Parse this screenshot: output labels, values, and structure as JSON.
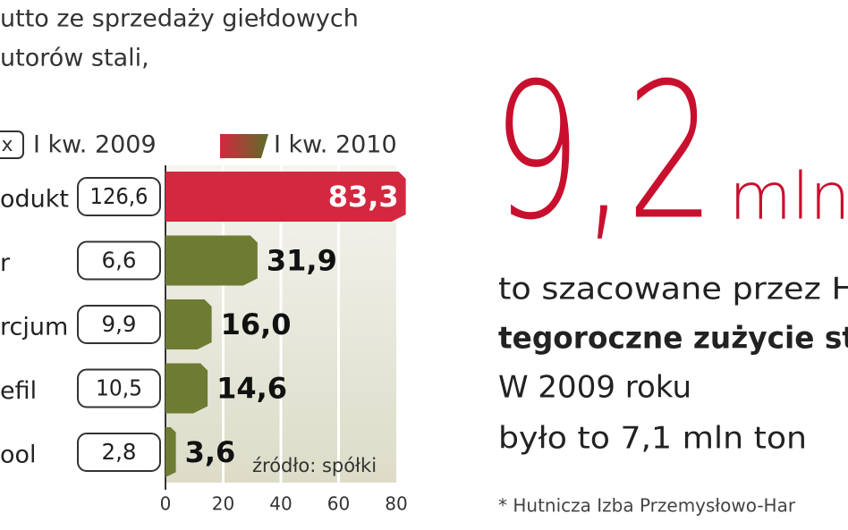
{
  "chart_data": {
    "type": "bar",
    "orientation": "horizontal",
    "title_lines": [
      "utto ze sprzedaży giełdowych",
      "utorów stali,"
    ],
    "categories": [
      "odukt",
      "r",
      "rcjum",
      "efil",
      "ool"
    ],
    "series": [
      {
        "name": "I kw. 2009",
        "legend_mark": "x",
        "values": [
          126.6,
          6.6,
          9.9,
          10.5,
          2.8
        ],
        "value_labels": [
          "126,6",
          "6,6",
          "9,9",
          "10,5",
          "2,8"
        ]
      },
      {
        "name": "I kw. 2010",
        "colors": [
          "#d3283f",
          "#6e7b32",
          "#6e7b32",
          "#6e7b32",
          "#6e7b32"
        ],
        "values": [
          83.3,
          31.9,
          16.0,
          14.6,
          3.6
        ],
        "value_labels": [
          "83,3",
          "31,9",
          "16,0",
          "14,6",
          "3,6"
        ]
      }
    ],
    "xlim": [
      0,
      80
    ],
    "xticks": [
      0,
      20,
      40,
      60,
      80
    ],
    "grid": true,
    "source": "źródło: spółki"
  },
  "callout": {
    "number": "9,2",
    "unit": "mln",
    "lines": [
      "to szacowane przez H",
      "tegoroczne zużycie st",
      "W 2009 roku",
      "było to 7,1 mln ton"
    ],
    "footnote": "* Hutnicza Izba Przemysłowo-Har"
  }
}
